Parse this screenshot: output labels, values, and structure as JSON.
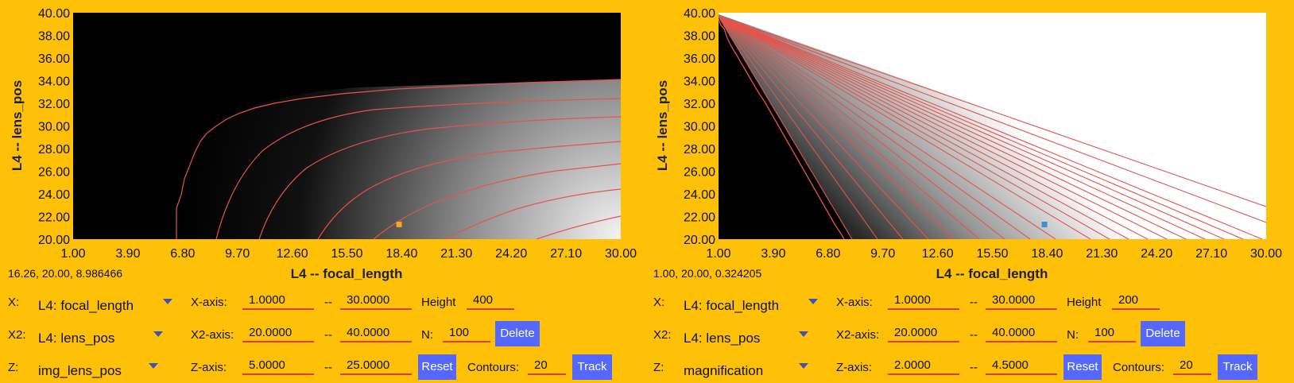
{
  "panels": [
    {
      "id": "left",
      "readout": "16.26, 20.00, 8.986466",
      "x_select": {
        "label": "X:",
        "value": "L4: focal_length"
      },
      "x2_select": {
        "label": "X2:",
        "value": "L4: lens_pos"
      },
      "z_select": {
        "label": "Z:",
        "value": "img_lens_pos"
      },
      "x_axis": {
        "label": "X-axis:",
        "min": "1.0000",
        "sep": "--",
        "max": "30.0000"
      },
      "x2_axis": {
        "label": "X2-axis:",
        "min": "20.0000",
        "sep": "--",
        "max": "40.0000"
      },
      "z_axis": {
        "label": "Z-axis:",
        "min": "5.0000",
        "sep": "--",
        "max": "25.0000"
      },
      "height": {
        "label": "Height",
        "value": "400"
      },
      "n": {
        "label": "N:",
        "value": "100"
      },
      "contours": {
        "label": "Contours:",
        "value": "20"
      },
      "buttons": {
        "delete": "Delete",
        "reset": "Reset",
        "track": "Track"
      },
      "chart": {
        "xlabel": "L4 -- focal_length",
        "ylabel": "L4 -- lens_pos",
        "xticks": [
          "1.00",
          "3.90",
          "6.80",
          "9.70",
          "12.60",
          "15.50",
          "18.40",
          "21.30",
          "24.20",
          "27.10",
          "30.00"
        ],
        "yticks": [
          "40.00",
          "38.00",
          "36.00",
          "34.00",
          "32.00",
          "30.00",
          "28.00",
          "26.00",
          "24.00",
          "22.00",
          "20.00"
        ],
        "marker_color": "#f5a623",
        "marker": {
          "x": 18.26,
          "y": 21.3
        }
      }
    },
    {
      "id": "right",
      "readout": "1.00, 20.00, 0.324205",
      "x_select": {
        "label": "X:",
        "value": "L4: focal_length"
      },
      "x2_select": {
        "label": "X2:",
        "value": "L4: lens_pos"
      },
      "z_select": {
        "label": "Z:",
        "value": "magnification"
      },
      "x_axis": {
        "label": "X-axis:",
        "min": "1.0000",
        "sep": "--",
        "max": "30.0000"
      },
      "x2_axis": {
        "label": "X2-axis:",
        "min": "20.0000",
        "sep": "--",
        "max": "40.0000"
      },
      "z_axis": {
        "label": "Z-axis:",
        "min": "2.0000",
        "sep": "--",
        "max": "4.5000"
      },
      "height": {
        "label": "Height",
        "value": "200"
      },
      "n": {
        "label": "N:",
        "value": "100"
      },
      "contours": {
        "label": "Contours:",
        "value": "20"
      },
      "buttons": {
        "delete": "Delete",
        "reset": "Reset",
        "track": "Track"
      },
      "chart": {
        "xlabel": "L4 -- focal_length",
        "ylabel": "L4 -- lens_pos",
        "xticks": [
          "1.00",
          "3.90",
          "6.80",
          "9.70",
          "12.60",
          "15.50",
          "18.40",
          "21.30",
          "24.20",
          "27.10",
          "30.00"
        ],
        "yticks": [
          "40.00",
          "38.00",
          "36.00",
          "34.00",
          "32.00",
          "30.00",
          "28.00",
          "26.00",
          "24.00",
          "22.00",
          "20.00"
        ],
        "marker_color": "#3f8fd8",
        "marker": {
          "x": 18.26,
          "y": 21.3
        }
      }
    }
  ],
  "colors": {
    "background": "#FFC107",
    "button": "#5468ff",
    "field_underline": "#e53935",
    "contour": "#e5534b"
  }
}
